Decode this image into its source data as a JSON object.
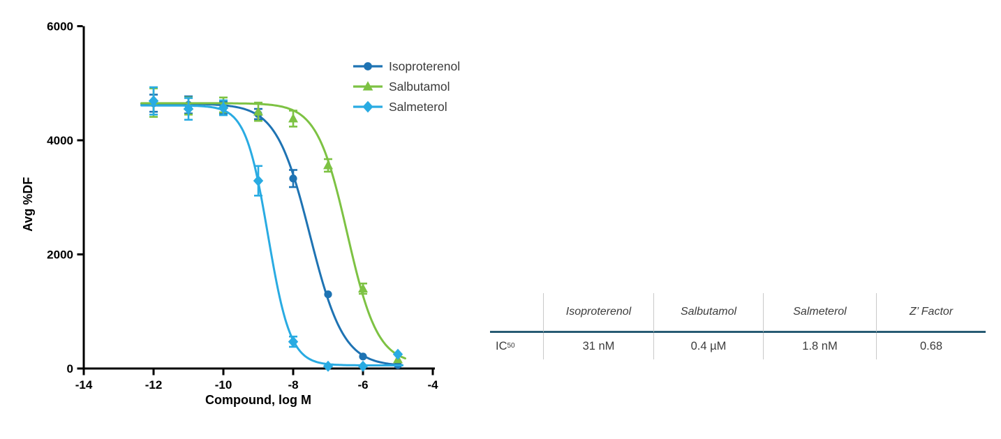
{
  "chart_data": {
    "type": "line",
    "title": "",
    "xlabel": "Compound, log M",
    "ylabel": "Avg %DF",
    "xlim": [
      -14,
      -4
    ],
    "ylim": [
      0,
      6000
    ],
    "x_ticks": [
      -14,
      -12,
      -10,
      -8,
      -6,
      -4
    ],
    "y_ticks": [
      0,
      2000,
      4000,
      6000
    ],
    "grid": false,
    "legend_position": "upper-right-inside",
    "x": [
      -12,
      -11,
      -10,
      -9,
      -8,
      -7,
      -6,
      -5
    ],
    "series": [
      {
        "name": "Isoproterenol",
        "color": "#1E73B3",
        "marker": "circle",
        "values": [
          4650,
          4620,
          4570,
          4460,
          3330,
          1300,
          210,
          60
        ],
        "errors": [
          150,
          150,
          110,
          90,
          150,
          0,
          0,
          0
        ],
        "fit": {
          "top": 4640,
          "bottom": 40,
          "logec50": -7.52,
          "hill": 0.9,
          "x_start": -12.35,
          "x_end": -4.85
        }
      },
      {
        "name": "Salbutamol",
        "color": "#7DC243",
        "marker": "triangle",
        "values": [
          4660,
          4600,
          4620,
          4500,
          4380,
          3560,
          1400,
          160
        ],
        "errors": [
          250,
          150,
          130,
          160,
          140,
          110,
          90,
          0
        ],
        "fit": {
          "top": 4650,
          "bottom": 80,
          "logec50": -6.45,
          "hill": 1.0,
          "x_start": -12.35,
          "x_end": -4.78
        }
      },
      {
        "name": "Salmeterol",
        "color": "#29ABE2",
        "marker": "diamond",
        "values": [
          4690,
          4550,
          4570,
          3290,
          470,
          40,
          40,
          250
        ],
        "errors": [
          240,
          190,
          130,
          260,
          90,
          0,
          0,
          0
        ],
        "fit": {
          "top": 4610,
          "bottom": 55,
          "logec50": -8.72,
          "hill": 1.35,
          "x_start": -12.35,
          "x_end": -4.85
        }
      }
    ]
  },
  "table": {
    "row_label": {
      "text": "IC",
      "sub": "50"
    },
    "columns": [
      {
        "header": "Isoproterenol",
        "value": "31 nM"
      },
      {
        "header": "Salbutamol",
        "value": "0.4 µM"
      },
      {
        "header": "Salmeterol",
        "value": "1.8 nM"
      },
      {
        "header": "Z’ Factor",
        "value": "0.68"
      }
    ],
    "header_rule_color": "#275B73",
    "divider_color": "#C9C9C9",
    "text_color": "#3C3C3C"
  },
  "colors": {
    "axis": "#000000",
    "legend_text": "#3A3A3A",
    "background": "#FFFFFF"
  }
}
